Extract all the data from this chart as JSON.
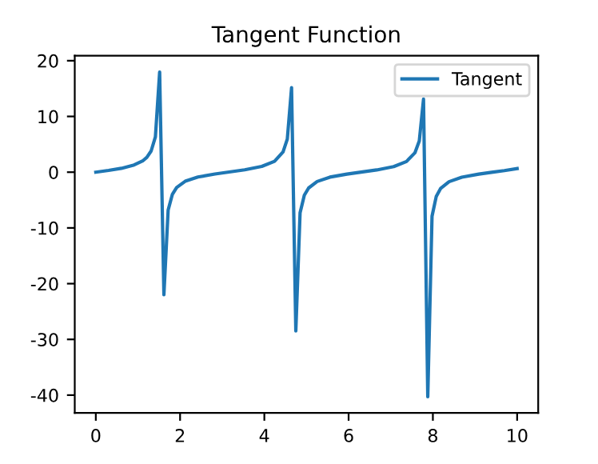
{
  "chart_data": {
    "type": "line",
    "title": "Tangent Function",
    "x": [
      0,
      0.303,
      0.606,
      0.909,
      1.111,
      1.212,
      1.313,
      1.414,
      1.515,
      1.616,
      1.717,
      1.818,
      1.919,
      2.121,
      2.424,
      2.828,
      3.131,
      3.535,
      3.939,
      4.242,
      4.444,
      4.545,
      4.646,
      4.747,
      4.848,
      4.949,
      5.051,
      5.253,
      5.556,
      5.96,
      6.263,
      6.667,
      7.071,
      7.374,
      7.576,
      7.677,
      7.778,
      7.879,
      7.98,
      8.081,
      8.182,
      8.384,
      8.687,
      9.091,
      9.394,
      9.697,
      10
    ],
    "series": [
      {
        "name": "Tangent",
        "color": "#1f77b4",
        "values": [
          0,
          0.31,
          0.69,
          1.29,
          2.01,
          2.67,
          3.8,
          6.33,
          17.97,
          -22.0,
          -6.78,
          -3.96,
          -2.75,
          -1.63,
          -0.87,
          -0.32,
          -0.01,
          0.42,
          1.03,
          1.96,
          3.64,
          5.93,
          15.16,
          -28.5,
          -7.3,
          -4.14,
          -2.84,
          -1.67,
          -0.89,
          -0.34,
          -0.02,
          0.4,
          1.0,
          1.92,
          3.5,
          5.58,
          13.1,
          -40.3,
          -7.9,
          -4.33,
          -2.94,
          -1.71,
          -0.91,
          -0.35,
          -0.03,
          0.28,
          0.65
        ]
      }
    ],
    "xlim": [
      -0.5,
      10.5
    ],
    "ylim": [
      -43.2,
      20.9
    ],
    "xticks": [
      0,
      2,
      4,
      6,
      8,
      10
    ],
    "yticks": [
      -40,
      -30,
      -20,
      -10,
      0,
      10,
      20
    ],
    "grid": false,
    "legend": "top right",
    "marker": "none",
    "line_style": "solid"
  }
}
